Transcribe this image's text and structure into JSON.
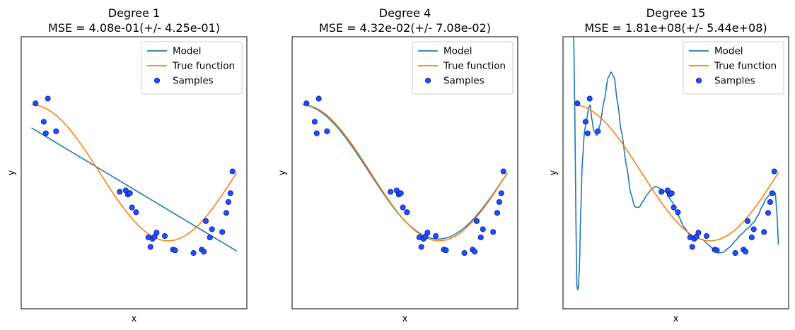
{
  "colors": {
    "model": "#1f77b4",
    "true_function": "#ff7f0e",
    "samples_fill": "#1f4fff",
    "samples_edge": "#0a1aa8"
  },
  "legend": {
    "model": "Model",
    "true_function": "True function",
    "samples": "Samples"
  },
  "chart_data": [
    {
      "type": "line",
      "title": "Degree 1",
      "subtitle": "MSE = 4.08e-01(+/- 4.25e-01)",
      "xlabel": "x",
      "ylabel": "y",
      "xlim": [
        -0.05,
        1.05
      ],
      "ylim": [
        -2,
        2
      ],
      "ticks_visible": false,
      "legend_position": "top-right",
      "series": [
        {
          "name": "Model",
          "x": [
            0,
            1
          ],
          "y": [
            0.66,
            -1.15
          ]
        },
        {
          "name": "True function",
          "function": "cos(1.5*pi*x)",
          "x_range": [
            0,
            1
          ]
        },
        {
          "name": "Samples",
          "x": [
            0.02,
            0.06,
            0.07,
            0.08,
            0.12,
            0.43,
            0.46,
            0.47,
            0.48,
            0.49,
            0.51,
            0.57,
            0.58,
            0.59,
            0.6,
            0.61,
            0.65,
            0.69,
            0.7,
            0.79,
            0.83,
            0.84,
            0.85,
            0.87,
            0.88,
            0.93,
            0.95,
            0.96,
            0.97,
            0.98
          ],
          "y": [
            1.02,
            0.75,
            0.58,
            1.09,
            0.61,
            -0.28,
            -0.26,
            -0.32,
            -0.3,
            -0.51,
            -0.58,
            -0.95,
            -1.09,
            -0.97,
            -0.94,
            -0.88,
            -0.93,
            -1.13,
            -1.14,
            -1.18,
            -1.13,
            -1.16,
            -0.71,
            -0.95,
            -0.83,
            -0.87,
            -0.59,
            -0.43,
            -0.3,
            0.02
          ]
        }
      ]
    },
    {
      "type": "line",
      "title": "Degree 4",
      "subtitle": "MSE = 4.32e-02(+/- 7.08e-02)",
      "xlabel": "x",
      "ylabel": "y",
      "xlim": [
        -0.05,
        1.05
      ],
      "ylim": [
        -2,
        2
      ],
      "ticks_visible": false,
      "legend_position": "top-right",
      "series": [
        {
          "name": "Model",
          "function": "poly4_fit",
          "x_range": [
            0,
            1
          ]
        },
        {
          "name": "True function",
          "function": "cos(1.5*pi*x)",
          "x_range": [
            0,
            1
          ]
        },
        {
          "name": "Samples",
          "x": [
            0.02,
            0.06,
            0.07,
            0.08,
            0.12,
            0.43,
            0.46,
            0.47,
            0.48,
            0.49,
            0.51,
            0.57,
            0.58,
            0.59,
            0.6,
            0.61,
            0.65,
            0.69,
            0.7,
            0.79,
            0.83,
            0.84,
            0.85,
            0.87,
            0.88,
            0.93,
            0.95,
            0.96,
            0.97,
            0.98
          ],
          "y": [
            1.02,
            0.75,
            0.58,
            1.09,
            0.61,
            -0.28,
            -0.26,
            -0.32,
            -0.3,
            -0.51,
            -0.58,
            -0.95,
            -1.09,
            -0.97,
            -0.94,
            -0.88,
            -0.93,
            -1.13,
            -1.14,
            -1.18,
            -1.13,
            -1.16,
            -0.71,
            -0.95,
            -0.83,
            -0.87,
            -0.59,
            -0.43,
            -0.3,
            0.02
          ]
        }
      ]
    },
    {
      "type": "line",
      "title": "Degree 15",
      "subtitle": "MSE = 1.81e+08(+/- 5.44e+08)",
      "xlabel": "x",
      "ylabel": "y",
      "xlim": [
        -0.05,
        1.05
      ],
      "ylim": [
        -2,
        2
      ],
      "ticks_visible": false,
      "legend_position": "top-right",
      "series": [
        {
          "name": "Model",
          "function": "poly15_fit",
          "x_range": [
            0,
            1
          ]
        },
        {
          "name": "True function",
          "function": "cos(1.5*pi*x)",
          "x_range": [
            0,
            1
          ]
        },
        {
          "name": "Samples",
          "x": [
            0.02,
            0.06,
            0.07,
            0.08,
            0.12,
            0.43,
            0.46,
            0.47,
            0.48,
            0.49,
            0.51,
            0.57,
            0.58,
            0.59,
            0.6,
            0.61,
            0.65,
            0.69,
            0.7,
            0.79,
            0.83,
            0.84,
            0.85,
            0.87,
            0.88,
            0.93,
            0.95,
            0.96,
            0.97,
            0.98
          ],
          "y": [
            1.02,
            0.75,
            0.58,
            1.09,
            0.61,
            -0.28,
            -0.26,
            -0.32,
            -0.3,
            -0.51,
            -0.58,
            -0.95,
            -1.09,
            -0.97,
            -0.94,
            -0.88,
            -0.93,
            -1.13,
            -1.14,
            -1.18,
            -1.13,
            -1.16,
            -0.71,
            -0.95,
            -0.83,
            -0.87,
            -0.59,
            -0.43,
            -0.3,
            0.02
          ]
        }
      ]
    }
  ]
}
